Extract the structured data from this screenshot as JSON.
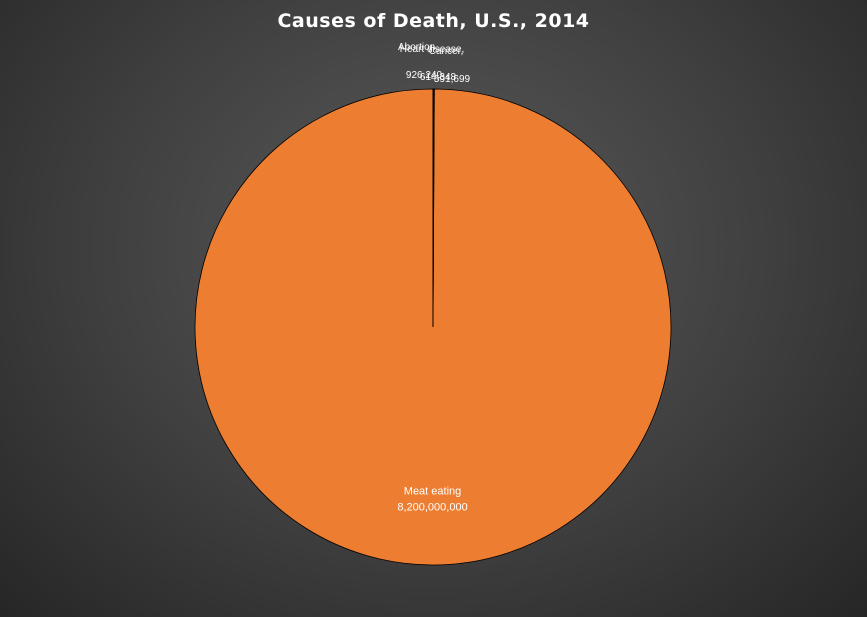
{
  "chart_data": {
    "type": "pie",
    "title": "Causes of Death, U.S., 2014",
    "slices": [
      {
        "label": "Meat eating",
        "value": 8200000000,
        "value_label": "8,200,000,000",
        "color": "#ed7d31"
      },
      {
        "label": "Abortion",
        "value": 926240,
        "value_label": "926,240",
        "color": "#ed7d31"
      },
      {
        "label": "Heart disease",
        "value": 614348,
        "value_label": "614,348",
        "color": "#ed7d31"
      },
      {
        "label": "Cancer",
        "value": 591699,
        "value_label": "591,699",
        "color": "#ed7d31"
      }
    ],
    "legend": "none",
    "colors": {
      "slice": "#ed7d31",
      "border": "#000000",
      "background": "#404040",
      "text": "#ffffff"
    }
  }
}
